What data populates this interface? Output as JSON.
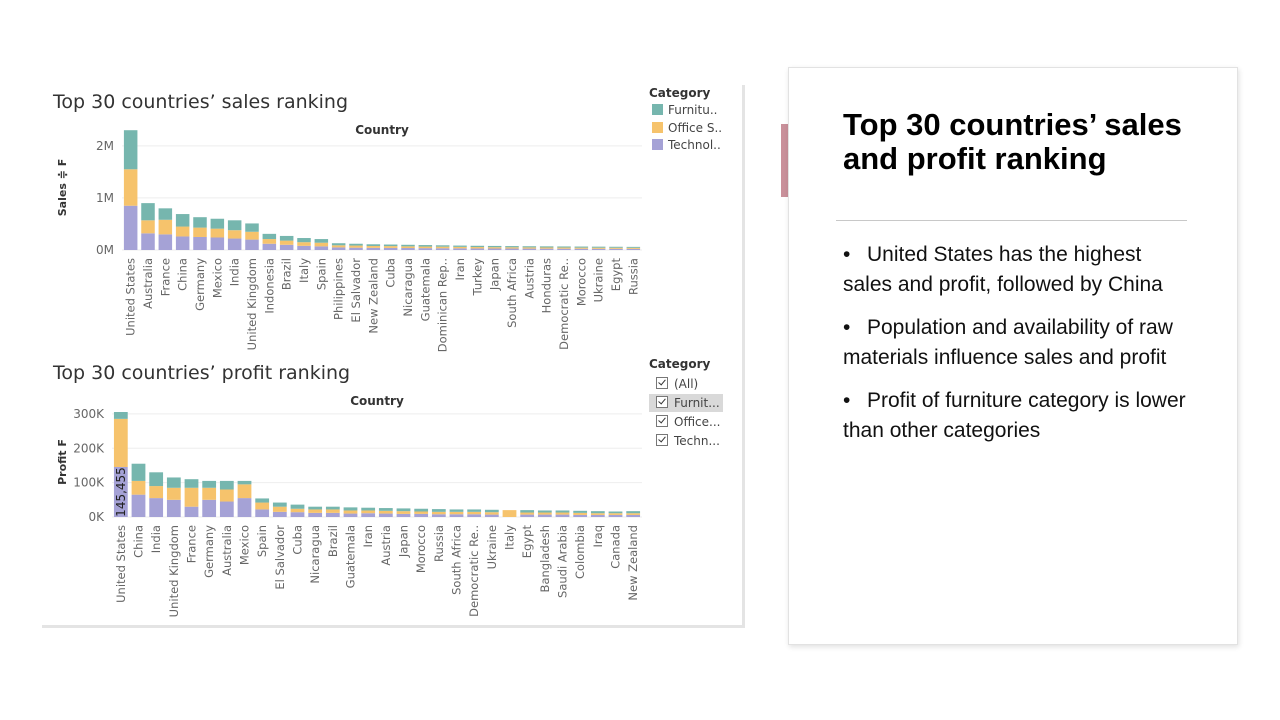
{
  "colors": {
    "furniture": "#76b6ae",
    "office_supplies": "#f6c36c",
    "technology": "#a5a2d6",
    "accent": "#c9909a"
  },
  "sales_chart": {
    "title": "Top 30 countries’ sales ranking",
    "column_header": "Country",
    "ylabel": "Sales ≑ F",
    "yticks": [
      "2M",
      "1M",
      "0M"
    ],
    "legend_title": "Category",
    "legend": [
      "Furnitu..",
      "Office S..",
      "Technol.."
    ]
  },
  "profit_chart": {
    "title": "Top 30 countries’ profit ranking",
    "column_header": "Country",
    "ylabel": "Profit F",
    "yticks": [
      "300K",
      "200K",
      "100K",
      "0K"
    ],
    "highlight_label": "145,455",
    "filter_title": "Category",
    "filters": [
      "(All)",
      "Furnit...",
      "Office...",
      "Techn..."
    ]
  },
  "chart_data": [
    {
      "type": "bar",
      "title": "Top 30 countries’ sales ranking",
      "xlabel": "Country",
      "ylabel": "Sales",
      "ylim": [
        0,
        2400000
      ],
      "stacked": true,
      "legend_position": "top-right",
      "categories": [
        "United States",
        "Australia",
        "France",
        "China",
        "Germany",
        "Mexico",
        "India",
        "United Kingdom",
        "Indonesia",
        "Brazil",
        "Italy",
        "Spain",
        "Philippines",
        "El Salvador",
        "New Zealand",
        "Cuba",
        "Nicaragua",
        "Guatemala",
        "Dominican Rep..",
        "Iran",
        "Turkey",
        "Japan",
        "South Africa",
        "Austria",
        "Honduras",
        "Democratic Re..",
        "Morocco",
        "Ukraine",
        "Egypt",
        "Russia"
      ],
      "series": [
        {
          "name": "Technol..",
          "values": [
            850000,
            320000,
            300000,
            260000,
            250000,
            240000,
            220000,
            200000,
            120000,
            100000,
            80000,
            70000,
            50000,
            45000,
            42000,
            40000,
            38000,
            36000,
            34000,
            32000,
            30000,
            29000,
            28000,
            27000,
            26000,
            25000,
            24000,
            23000,
            23000,
            22000
          ]
        },
        {
          "name": "Office S..",
          "values": [
            700000,
            250000,
            280000,
            190000,
            180000,
            170000,
            160000,
            150000,
            90000,
            80000,
            70000,
            70000,
            40000,
            40000,
            35000,
            35000,
            32000,
            30000,
            30000,
            28000,
            27000,
            25000,
            24000,
            23000,
            22000,
            22000,
            21000,
            21000,
            20000,
            20000
          ]
        },
        {
          "name": "Furnitu..",
          "values": [
            750000,
            330000,
            220000,
            240000,
            200000,
            190000,
            190000,
            160000,
            100000,
            90000,
            80000,
            70000,
            40000,
            35000,
            33000,
            30000,
            30000,
            29000,
            26000,
            25000,
            24000,
            24000,
            23000,
            22000,
            22000,
            21000,
            21000,
            20000,
            19000,
            18000
          ]
        }
      ]
    },
    {
      "type": "bar",
      "title": "Top 30 countries’ profit ranking",
      "xlabel": "Country",
      "ylabel": "Profit",
      "ylim": [
        0,
        320000
      ],
      "stacked": true,
      "categories": [
        "United States",
        "China",
        "India",
        "United Kingdom",
        "France",
        "Germany",
        "Australia",
        "Mexico",
        "Spain",
        "El Salvador",
        "Cuba",
        "Nicaragua",
        "Brazil",
        "Guatemala",
        "Iran",
        "Austria",
        "Japan",
        "Morocco",
        "Russia",
        "South Africa",
        "Democratic Re..",
        "Ukraine",
        "Italy",
        "Egypt",
        "Bangladesh",
        "Saudi Arabia",
        "Colombia",
        "Iraq",
        "Canada",
        "New Zealand"
      ],
      "series": [
        {
          "name": "Technology",
          "values": [
            145455,
            65000,
            55000,
            50000,
            30000,
            50000,
            45000,
            55000,
            22000,
            15000,
            14000,
            12000,
            12000,
            10000,
            11000,
            10000,
            9000,
            9000,
            8000,
            8000,
            8000,
            7000,
            0,
            7000,
            7000,
            7000,
            6000,
            6000,
            6000,
            6000
          ]
        },
        {
          "name": "Office Supplies",
          "values": [
            140000,
            40000,
            35000,
            35000,
            55000,
            35000,
            35000,
            40000,
            20000,
            15000,
            10000,
            10000,
            10000,
            9000,
            8000,
            8000,
            8000,
            7000,
            7000,
            7000,
            7000,
            7000,
            20000,
            6000,
            6000,
            6000,
            6000,
            5000,
            5000,
            5000
          ]
        },
        {
          "name": "Furniture",
          "values": [
            20000,
            50000,
            40000,
            30000,
            25000,
            20000,
            25000,
            10000,
            12000,
            12000,
            12000,
            8000,
            8000,
            9000,
            8000,
            8000,
            8000,
            8000,
            8000,
            7000,
            7000,
            7000,
            0,
            7000,
            6000,
            6000,
            6000,
            6000,
            5000,
            6000
          ]
        }
      ]
    }
  ],
  "panel": {
    "title": "Top 30 countries’ sales and profit ranking",
    "bullet_glyph": "•",
    "bullets": [
      "United States has the highest sales and profit, followed by China",
      "Population and availability of raw materials influence sales and profit",
      "Profit of furniture category is lower than other categories"
    ]
  }
}
